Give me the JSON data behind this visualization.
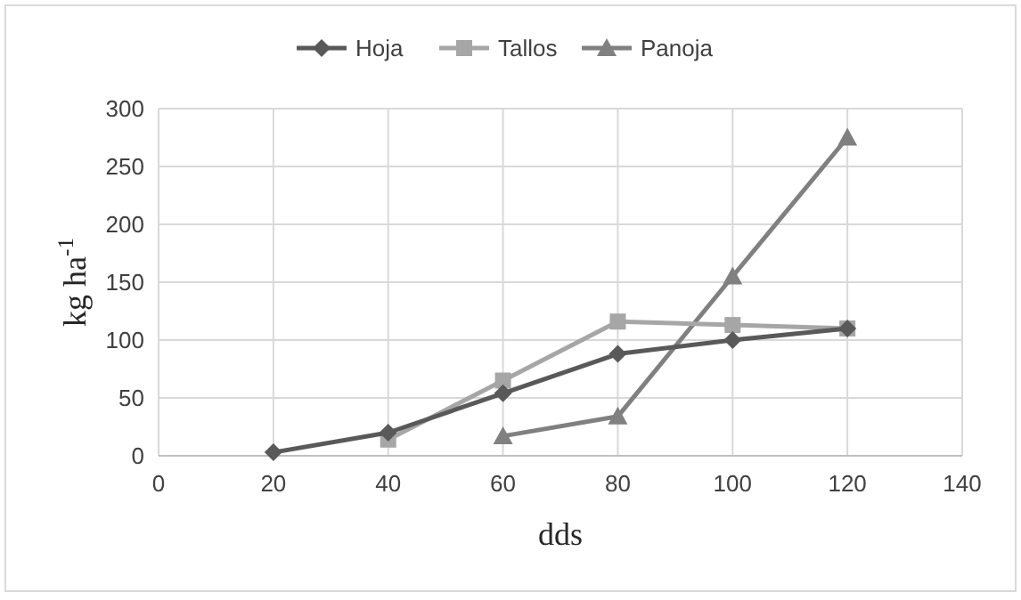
{
  "chart_data": {
    "type": "line",
    "xlabel": "dds",
    "ylabel": "kg ha$^{-1}$",
    "xlim": [
      0,
      140
    ],
    "xticks": [
      0,
      20,
      40,
      60,
      80,
      100,
      120,
      140
    ],
    "ylim": [
      0,
      300
    ],
    "yticks": [
      0,
      50,
      100,
      150,
      200,
      250,
      300
    ],
    "grid": true,
    "legend": "top",
    "series": [
      {
        "name": "Hoja",
        "color": "#595959",
        "marker": "diamond",
        "x": [
          20,
          40,
          60,
          80,
          100,
          120
        ],
        "values": [
          3,
          20,
          54,
          88,
          100,
          110
        ]
      },
      {
        "name": "Tallos",
        "color": "#a6a6a6",
        "marker": "square",
        "x": [
          40,
          60,
          80,
          100,
          120
        ],
        "values": [
          14,
          65,
          116,
          113,
          110
        ]
      },
      {
        "name": "Panoja",
        "color": "#808080",
        "marker": "triangle",
        "x": [
          60,
          80,
          100,
          120
        ],
        "values": [
          17,
          34,
          155,
          275
        ]
      }
    ]
  }
}
